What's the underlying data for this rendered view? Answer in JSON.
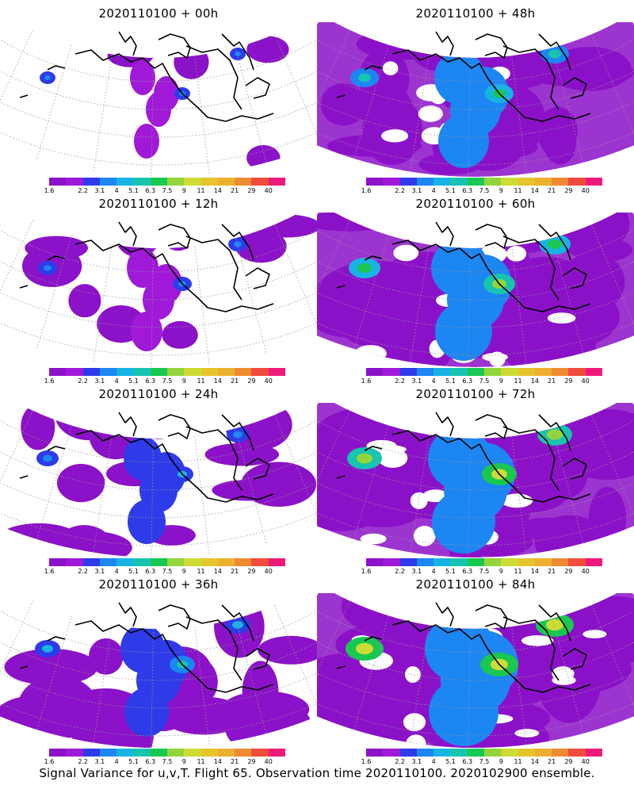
{
  "colorbar": {
    "colors": [
      "#8b12c8",
      "#a019d8",
      "#2e3be8",
      "#1c86f2",
      "#17b4e3",
      "#17c4b0",
      "#18c850",
      "#93d43c",
      "#cddc34",
      "#e6c42c",
      "#ecb030",
      "#ee8a32",
      "#f04c3c",
      "#ee1a7a"
    ],
    "labels": [
      "1.6",
      "2.2",
      "3.1",
      "4",
      "5.1",
      "6.3",
      "7.5",
      "9",
      "11",
      "14",
      "21",
      "29",
      "40"
    ]
  },
  "panels": [
    {
      "title": "2020110100 + 00h",
      "level": 0
    },
    {
      "title": "2020110100 + 48h",
      "level": 4
    },
    {
      "title": "2020110100 + 12h",
      "level": 1
    },
    {
      "title": "2020110100 + 60h",
      "level": 5
    },
    {
      "title": "2020110100 + 24h",
      "level": 2
    },
    {
      "title": "2020110100 + 72h",
      "level": 6
    },
    {
      "title": "2020110100 + 36h",
      "level": 3
    },
    {
      "title": "2020110100 + 84h",
      "level": 7
    }
  ],
  "footer": {
    "caption": "Signal Variance for u,v,T. Flight 65. Observation time 2020110100. 2020102900 ensemble."
  }
}
